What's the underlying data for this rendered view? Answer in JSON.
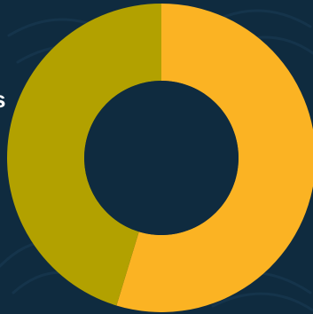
{
  "edge_text": "s",
  "colors": {
    "background": "#0f2b3f",
    "pattern": "#16364d",
    "slice_1": "#fbb323",
    "slice_2": "#b2a100"
  },
  "chart_data": {
    "type": "pie",
    "donut": true,
    "values": [
      0.547,
      0.453
    ],
    "colors": [
      "#fbb323",
      "#b2a100"
    ],
    "title": "",
    "legend": "none"
  }
}
